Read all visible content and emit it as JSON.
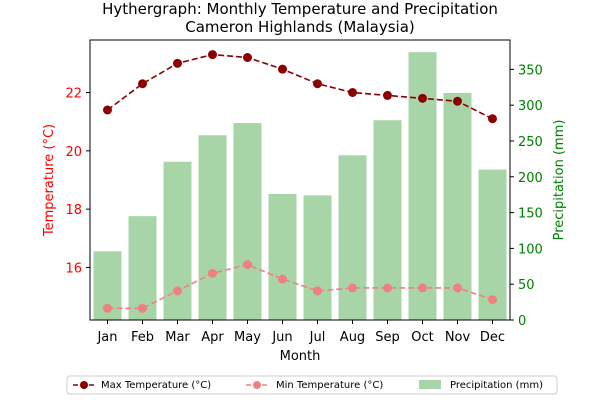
{
  "chart_data": {
    "type": "bar+line",
    "title_line1": "Hythergraph: Monthly Temperature and Precipitation",
    "title_line2": "Cameron Highlands (Malaysia)",
    "xlabel": "Month",
    "ylabel_left": "Temperature (°C)",
    "ylabel_right": "Precipitation (mm)",
    "categories": [
      "Jan",
      "Feb",
      "Mar",
      "Apr",
      "May",
      "Jun",
      "Jul",
      "Aug",
      "Sep",
      "Oct",
      "Nov",
      "Dec"
    ],
    "ylim_left": [
      14.2,
      23.8
    ],
    "yticks_left": [
      16,
      18,
      20,
      22
    ],
    "ylim_right": [
      0,
      391
    ],
    "yticks_right": [
      0,
      50,
      100,
      150,
      200,
      250,
      300,
      350
    ],
    "grid": false,
    "legend_placement": "bottom-center",
    "colors": {
      "max_temp": "#8b0000",
      "min_temp": "#f08080",
      "precip": "#a8d5a8",
      "left_axis": "#ff0000",
      "right_axis": "#008000"
    },
    "series": [
      {
        "key": "max",
        "name": "Max Temperature (°C)",
        "axis": "left",
        "type": "line",
        "values": [
          21.4,
          22.3,
          23.0,
          23.3,
          23.2,
          22.8,
          22.3,
          22.0,
          21.9,
          21.8,
          21.7,
          21.1
        ]
      },
      {
        "key": "min",
        "name": "Min Temperature (°C)",
        "axis": "left",
        "type": "line",
        "values": [
          14.6,
          14.6,
          15.2,
          15.8,
          16.1,
          15.6,
          15.2,
          15.3,
          15.3,
          15.3,
          15.3,
          14.9
        ]
      },
      {
        "key": "precip",
        "name": "Precipitation (mm)",
        "axis": "right",
        "type": "bar",
        "values": [
          96,
          145,
          221,
          258,
          275,
          176,
          174,
          230,
          279,
          374,
          317,
          210
        ]
      }
    ]
  }
}
